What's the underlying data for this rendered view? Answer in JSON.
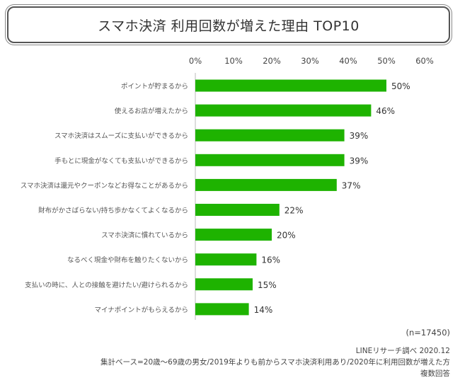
{
  "chart_data": {
    "type": "bar",
    "orientation": "horizontal",
    "title": "スマホ決済 利用回数が増えた理由 TOP10",
    "categories": [
      "ポイントが貯まるから",
      "使えるお店が増えたから",
      "スマホ決済はスムーズに支払いができるから",
      "手もとに現金がなくても支払いができるから",
      "スマホ決済は還元やクーポンなどお得なことがあるから",
      "財布がかさばらない/持ち歩かなくてよくなるから",
      "スマホ決済に慣れているから",
      "なるべく現金や財布を触りたくないから",
      "支払いの時に、人との接触を避けたい/避けられるから",
      "マイナポイントがもらえるから"
    ],
    "values": [
      50,
      46,
      39,
      39,
      37,
      22,
      20,
      16,
      15,
      14
    ],
    "data_labels": [
      "50%",
      "46%",
      "39%",
      "39%",
      "37%",
      "22%",
      "20%",
      "16%",
      "15%",
      "14%"
    ],
    "xlim": [
      0,
      60
    ],
    "xticks": [
      "0%",
      "10%",
      "20%",
      "30%",
      "40%",
      "50%",
      "60%"
    ],
    "xtick_position": "top",
    "grid": false,
    "bar_color": "#1eb300"
  },
  "notes": {
    "n": "(n=17450)",
    "source": "LINEリサーチ調べ 2020.12",
    "base": "集計ベース=20歳～69歳の男女/2019年よりも前からスマホ決済利用あり/2020年に利用回数が増えた方",
    "type": "複数回答"
  }
}
